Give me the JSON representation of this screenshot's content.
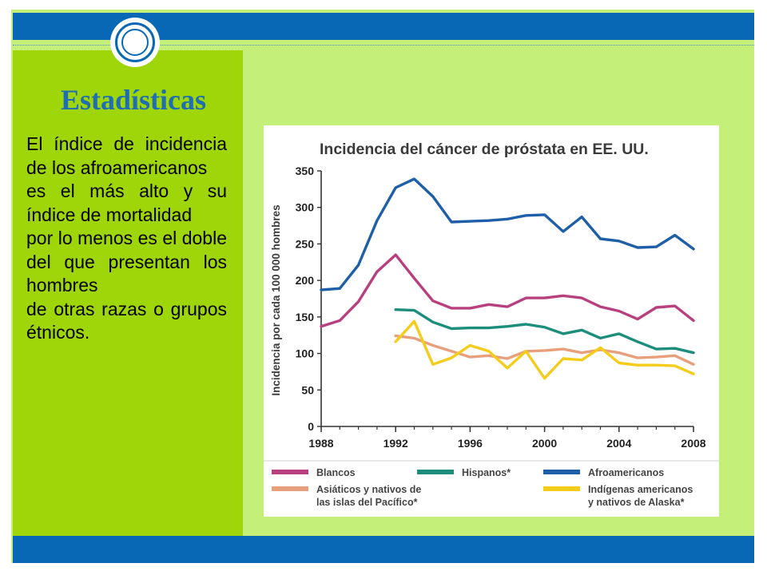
{
  "slide": {
    "title": "Estadísticas",
    "paragraphs": [
      "El índice de incidencia de los afroamericanos",
      "es el más alto y su índice de mortalidad",
      "por lo menos es el doble del que presentan los hombres",
      "de otras razas o grupos étnicos."
    ]
  },
  "colors": {
    "band": "#0868b6",
    "slide_bg": "#c4f07a",
    "panel": "#9ed60a",
    "title": "#1f6db3"
  },
  "chart_data": {
    "type": "line",
    "title": "Incidencia del cáncer de próstata en EE. UU.",
    "ylabel": "Incidencia por cada 100 000 hombres",
    "xlabel": "",
    "xlim": [
      1988,
      2008
    ],
    "ylim": [
      0,
      350
    ],
    "x_ticks": [
      "1988",
      "1992",
      "1996",
      "2000",
      "2004",
      "2008"
    ],
    "y_ticks": [
      "0",
      "50",
      "100",
      "150",
      "200",
      "250",
      "300",
      "350"
    ],
    "grid": false,
    "legend_position": "bottom",
    "series": [
      {
        "name": "Afroamericanos",
        "color": "#1f5fa8",
        "x": [
          1988,
          1989,
          1990,
          1991,
          1992,
          1993,
          1994,
          1995,
          1996,
          1997,
          1998,
          1999,
          2000,
          2001,
          2002,
          2003,
          2004,
          2005,
          2006,
          2007,
          2008
        ],
        "y": [
          187,
          189,
          221,
          282,
          327,
          339,
          315,
          280,
          281,
          282,
          284,
          289,
          290,
          267,
          287,
          257,
          254,
          245,
          246,
          262,
          243
        ]
      },
      {
        "name": "Blancos",
        "color": "#b8407f",
        "x": [
          1988,
          1989,
          1990,
          1991,
          1992,
          1993,
          1994,
          1995,
          1996,
          1997,
          1998,
          1999,
          2000,
          2001,
          2002,
          2003,
          2004,
          2005,
          2006,
          2007,
          2008
        ],
        "y": [
          137,
          145,
          171,
          212,
          235,
          203,
          172,
          162,
          162,
          167,
          164,
          176,
          176,
          179,
          176,
          164,
          158,
          147,
          163,
          165,
          145
        ]
      },
      {
        "name": "Hispanos*",
        "color": "#1e8e7c",
        "x": [
          1992,
          1993,
          1994,
          1995,
          1996,
          1997,
          1998,
          1999,
          2000,
          2001,
          2002,
          2003,
          2004,
          2005,
          2006,
          2007,
          2008
        ],
        "y": [
          160,
          159,
          143,
          134,
          135,
          135,
          137,
          140,
          136,
          127,
          132,
          121,
          127,
          116,
          106,
          107,
          101
        ]
      },
      {
        "name": "Asiáticos y nativos de las islas del Pacífico*",
        "color": "#e8a07c",
        "x": [
          1992,
          1993,
          1994,
          1995,
          1996,
          1997,
          1998,
          1999,
          2000,
          2001,
          2002,
          2003,
          2004,
          2005,
          2006,
          2007,
          2008
        ],
        "y": [
          124,
          121,
          111,
          103,
          95,
          97,
          93,
          103,
          104,
          106,
          101,
          105,
          101,
          94,
          95,
          97,
          85
        ]
      },
      {
        "name": "Indígenas americanos y nativos de Alaska*",
        "color": "#f4cc1b",
        "x": [
          1992,
          1993,
          1994,
          1995,
          1996,
          1997,
          1998,
          1999,
          2000,
          2001,
          2002,
          2003,
          2004,
          2005,
          2006,
          2007,
          2008
        ],
        "y": [
          116,
          144,
          85,
          94,
          111,
          103,
          80,
          103,
          66,
          93,
          91,
          108,
          87,
          84,
          84,
          83,
          72
        ]
      }
    ],
    "legend": [
      {
        "lines": [
          "Blancos"
        ],
        "color": "#b8407f"
      },
      {
        "lines": [
          "Hispanos*"
        ],
        "color": "#1e8e7c"
      },
      {
        "lines": [
          "Afroamericanos"
        ],
        "color": "#1f5fa8"
      },
      {
        "lines": [
          "Asiáticos y nativos de",
          "las islas del Pacífico*"
        ],
        "color": "#e8a07c"
      },
      {
        "lines": [],
        "color": ""
      },
      {
        "lines": [
          "Indígenas americanos",
          "y nativos de Alaska*"
        ],
        "color": "#f4cc1b"
      }
    ]
  }
}
